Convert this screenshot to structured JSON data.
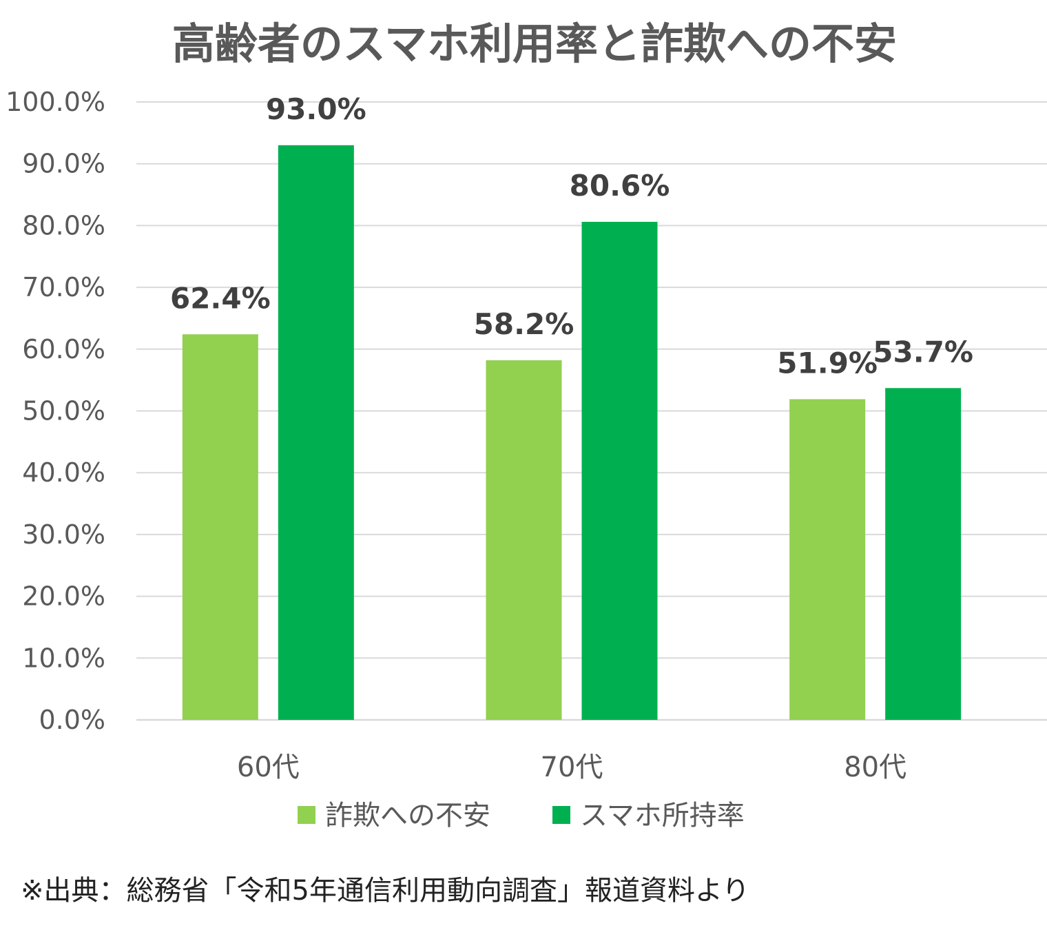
{
  "chart_data": {
    "type": "bar",
    "title": "高齢者のスマホ利用率と詐欺への不安",
    "categories": [
      "60代",
      "70代",
      "80代"
    ],
    "series": [
      {
        "name": "詐欺への不安",
        "values": [
          62.4,
          58.2,
          51.9
        ],
        "color": "#92d050",
        "labels": [
          "62.4%",
          "58.2%",
          "51.9%"
        ]
      },
      {
        "name": "スマホ所持率",
        "values": [
          93.0,
          80.6,
          53.7
        ],
        "color": "#00b050",
        "labels": [
          "93.0%",
          "80.6%",
          "53.7%"
        ]
      }
    ],
    "ylim": [
      0,
      100
    ],
    "yticks": [
      0,
      10,
      20,
      30,
      40,
      50,
      60,
      70,
      80,
      90,
      100
    ],
    "ytick_labels": [
      "0.0%",
      "10.0%",
      "20.0%",
      "30.0%",
      "40.0%",
      "50.0%",
      "60.0%",
      "70.0%",
      "80.0%",
      "90.0%",
      "100.0%"
    ],
    "grid": true,
    "legend_position": "bottom",
    "xlabel": "",
    "ylabel": ""
  },
  "source_note": "※出典：総務省「令和5年通信利用動向調査」報道資料より"
}
